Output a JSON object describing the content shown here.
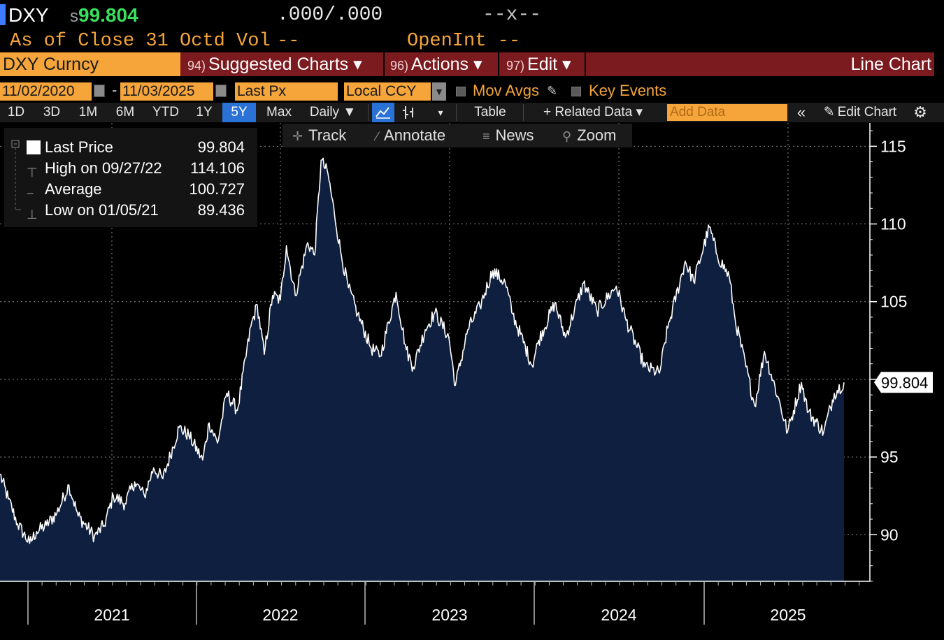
{
  "header": {
    "ticker": "DXY",
    "price_prefix": "s",
    "price": "99.804",
    "bid_ask": ".000/.000",
    "change": "--x--",
    "as_of": "As of Close 31 Octd Vol",
    "vol": "--",
    "open_int": "OpenInt --"
  },
  "menu": {
    "security": "DXY Curncy",
    "items": [
      {
        "code": "94)",
        "label": "Suggested Charts ▾"
      },
      {
        "code": "96)",
        "label": "Actions ▾"
      },
      {
        "code": "97)",
        "label": "Edit ▾"
      }
    ],
    "chart_type": "Line Chart"
  },
  "settings": {
    "date_from": "11/02/2020",
    "date_to": "11/03/2025",
    "date_sep": "-",
    "field": "Last Px",
    "currency": "Local CCY",
    "mov_avgs": "Mov Avgs",
    "key_events": "Key Events"
  },
  "toolbar": {
    "periods": [
      "1D",
      "3D",
      "1M",
      "6M",
      "YTD",
      "1Y",
      "5Y",
      "Max"
    ],
    "active_period": "5Y",
    "frequency": "Daily ▼",
    "table": "Table",
    "related_data": "+ Related Data ▾",
    "add_data_placeholder": "Add Data",
    "edit_chart": "Edit Chart"
  },
  "chart_tools": {
    "track": "Track",
    "annotate": "Annotate",
    "news": "News",
    "zoom": "Zoom"
  },
  "legend": {
    "last_label": "Last Price",
    "last_value": "99.804",
    "high_label": "High on 09/27/22",
    "high_value": "114.106",
    "avg_label": "Average",
    "avg_value": "100.727",
    "low_label": "Low on 01/05/21",
    "low_value": "89.436"
  },
  "colors": {
    "background": "#000000",
    "line": "#ffffff",
    "area_fill": "#0e1f3f",
    "accent_orange": "#f5a53a",
    "menu_red": "#7c1b1f",
    "price_green": "#39e05a"
  },
  "chart_data": {
    "type": "area",
    "series": [
      {
        "name": "Last Price",
        "x": [
          "2020-11-02",
          "2020-11-20",
          "2020-12-10",
          "2021-01-05",
          "2021-01-20",
          "2021-02-10",
          "2021-03-05",
          "2021-03-31",
          "2021-04-20",
          "2021-05-25",
          "2021-06-15",
          "2021-07-05",
          "2021-07-30",
          "2021-08-20",
          "2021-09-10",
          "2021-09-30",
          "2021-10-20",
          "2021-11-24",
          "2021-12-15",
          "2022-01-14",
          "2022-01-28",
          "2022-02-15",
          "2022-03-07",
          "2022-03-30",
          "2022-04-28",
          "2022-05-12",
          "2022-05-27",
          "2022-06-14",
          "2022-07-01",
          "2022-07-14",
          "2022-08-02",
          "2022-08-29",
          "2022-09-13",
          "2022-09-27",
          "2022-10-12",
          "2022-10-26",
          "2022-11-10",
          "2022-11-25",
          "2022-12-15",
          "2023-01-13",
          "2023-02-02",
          "2023-03-08",
          "2023-03-30",
          "2023-04-14",
          "2023-05-10",
          "2023-05-31",
          "2023-06-30",
          "2023-07-14",
          "2023-08-10",
          "2023-09-05",
          "2023-10-03",
          "2023-10-30",
          "2023-11-15",
          "2023-12-27",
          "2024-01-10",
          "2024-02-14",
          "2024-03-08",
          "2024-04-16",
          "2024-05-15",
          "2024-06-26",
          "2024-07-17",
          "2024-08-27",
          "2024-09-27",
          "2024-10-15",
          "2024-11-22",
          "2024-12-10",
          "2025-01-13",
          "2025-01-30",
          "2025-02-25",
          "2025-03-10",
          "2025-04-21",
          "2025-05-12",
          "2025-06-10",
          "2025-07-01",
          "2025-07-31",
          "2025-08-15",
          "2025-09-17",
          "2025-10-10",
          "2025-10-31"
        ],
        "values": [
          93.9,
          92.3,
          90.7,
          89.436,
          90.2,
          90.6,
          91.4,
          93.2,
          91.2,
          89.9,
          90.6,
          92.5,
          92.0,
          93.4,
          92.5,
          94.3,
          93.6,
          96.9,
          96.4,
          94.8,
          97.2,
          95.9,
          99.1,
          98.0,
          103.4,
          104.8,
          101.6,
          105.4,
          105.1,
          108.6,
          105.4,
          108.8,
          108.0,
          114.106,
          113.2,
          110.6,
          107.9,
          105.9,
          104.2,
          102.0,
          101.5,
          105.6,
          101.9,
          100.8,
          103.2,
          104.3,
          102.7,
          99.6,
          103.2,
          104.7,
          107.0,
          106.2,
          104.2,
          100.9,
          102.5,
          104.9,
          102.7,
          106.2,
          104.4,
          106.0,
          103.8,
          100.8,
          100.4,
          103.3,
          107.6,
          106.3,
          109.8,
          108.0,
          106.6,
          103.8,
          98.3,
          101.8,
          98.9,
          96.6,
          99.8,
          97.9,
          96.6,
          99.1,
          99.804
        ]
      }
    ],
    "x_tick_labels": [
      "2021",
      "2022",
      "2023",
      "2024",
      "2025"
    ],
    "y_ticks": [
      90,
      95,
      100,
      105,
      110,
      115
    ],
    "y_tick_labels": [
      "90",
      "95",
      "105",
      "110",
      "115"
    ],
    "ylim": [
      87,
      116.5
    ],
    "xlim": [
      "2020-11-02",
      "2025-11-03"
    ],
    "last_value_label": "99.804",
    "grid": true,
    "legend_position": "top-left"
  }
}
